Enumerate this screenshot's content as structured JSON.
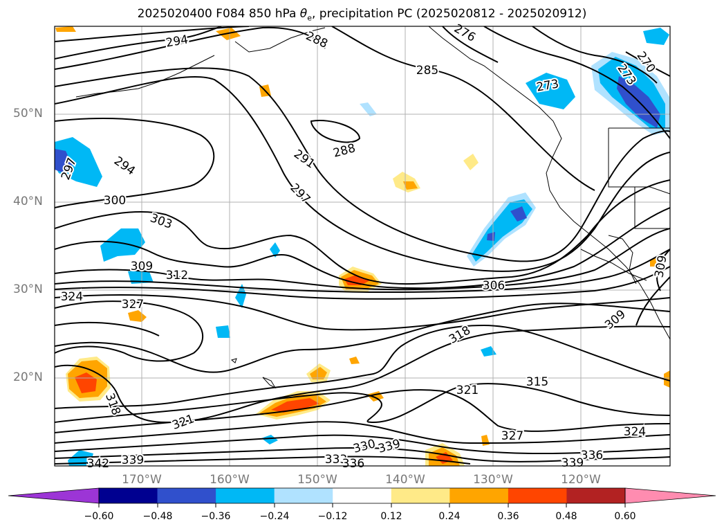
{
  "title": {
    "prefix": "2025020400 F084 850 hPa ",
    "symbol": "θ",
    "sub": "e",
    "suffix": ", precipitation PC (2025020812 - 2025020912)"
  },
  "axes": {
    "lat_labels": [
      "50°N",
      "40°N",
      "30°N",
      "20°N"
    ],
    "lon_labels": [
      "170°W",
      "160°W",
      "150°W",
      "140°W",
      "130°W",
      "120°W"
    ],
    "gridlines": true
  },
  "contour_labels": [
    "294",
    "288",
    "276",
    "285",
    "270",
    "273",
    "273",
    "288",
    "291",
    "297",
    "294",
    "297",
    "300",
    "303",
    "309",
    "312",
    "324",
    "327",
    "306",
    "309",
    "309",
    "318",
    "315",
    "321",
    "318",
    "321",
    "327",
    "324",
    "336",
    "333",
    "330",
    "339",
    "336",
    "339",
    "342",
    "339"
  ],
  "colorbar": {
    "ticks": [
      "−0.60",
      "−0.48",
      "−0.36",
      "−0.24",
      "−0.12",
      "0.12",
      "0.24",
      "0.36",
      "0.48",
      "0.60"
    ],
    "colors": [
      "#9c35d6",
      "#000090",
      "#3050cc",
      "#00b8f5",
      "#b0e2ff",
      "#ffffff",
      "#ffea88",
      "#ffa500",
      "#ff4500",
      "#b22222",
      "#ff8cb0"
    ]
  }
}
